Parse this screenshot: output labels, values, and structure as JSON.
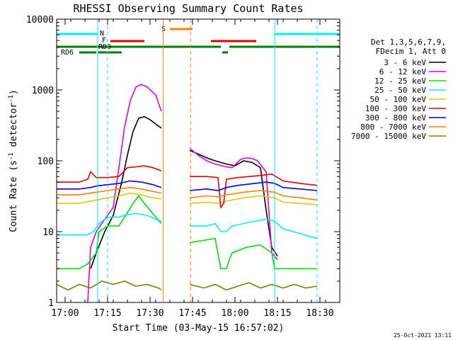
{
  "chart_data": {
    "type": "line",
    "title": "RHESSI Observing Summary Count Rates",
    "xlabel": "Start Time (03-May-15 16:57:02)",
    "ylabel": "Count Rate (s⁻¹ detector⁻¹)",
    "ylabel_main": "Count Rate (s",
    "ylabel_sup1": "-1",
    "ylabel_mid": " detector",
    "ylabel_sup2": "-1",
    "ylabel_end": ")",
    "y_scale": "log",
    "ylim": [
      1,
      10000
    ],
    "xlim_minutes_since_1657": [
      0,
      100
    ],
    "x_ticks": [
      {
        "label": "17:00",
        "min": 3
      },
      {
        "label": "17:15",
        "min": 18
      },
      {
        "label": "17:30",
        "min": 33
      },
      {
        "label": "17:45",
        "min": 48
      },
      {
        "label": "18:00",
        "min": 63
      },
      {
        "label": "18:15",
        "min": 78
      },
      {
        "label": "18:30",
        "min": 93
      }
    ],
    "y_ticks": [
      {
        "label": "1",
        "v": 1
      },
      {
        "label": "10",
        "v": 10
      },
      {
        "label": "100",
        "v": 100
      },
      {
        "label": "1000",
        "v": 1000
      },
      {
        "label": "10000",
        "v": 10000
      }
    ],
    "legend": {
      "placement": "right",
      "header": [
        "Det 1,3,5,6,7,9,",
        "FDecim 1, Att 0"
      ],
      "entries": [
        {
          "label": "3 - 6 keV",
          "color": "#000000"
        },
        {
          "label": "6 - 12 keV",
          "color": "#e000e0"
        },
        {
          "label": "12 - 25 keV",
          "color": "#00e000"
        },
        {
          "label": "25 - 50 keV",
          "color": "#00f0f0"
        },
        {
          "label": "50 - 100 keV",
          "color": "#e0c800"
        },
        {
          "label": "100 - 300 keV",
          "color": "#e00000"
        },
        {
          "label": "300 - 800 keV",
          "color": "#0000e0"
        },
        {
          "label": "800 - 7000 keV",
          "color": "#ff8000"
        },
        {
          "label": "7000 - 15000 keV",
          "color": "#808000"
        }
      ]
    },
    "flags": {
      "N_label": "N",
      "S_label": "S",
      "F_label": "F",
      "RD0_label": "RD0",
      "RD6_label": "RD6",
      "N_segments": [
        [
          0,
          14.5
        ],
        [
          77,
          100
        ]
      ],
      "S_segments": [
        [
          40,
          48
        ]
      ],
      "F_segments": [
        [
          19,
          31
        ],
        [
          54.5,
          70.5
        ]
      ],
      "RD0_segments": [
        [
          0,
          58
        ],
        [
          61,
          100
        ]
      ],
      "RD6_segments": [
        [
          8,
          14
        ],
        [
          14.5,
          23
        ],
        [
          58.5,
          60.5
        ]
      ]
    },
    "eclipse_lines_orange": [
      37.6,
      47.3
    ],
    "cyan_lines": [
      14.5,
      77
    ],
    "cyan_dashed": [
      18,
      92
    ],
    "gap": [
      37.6,
      46.8
    ],
    "series": [
      {
        "name": "3 - 6 keV",
        "color": "#000000",
        "segments": [
          [
            [
              12,
              3
            ],
            [
              14,
              5
            ],
            [
              17,
              10
            ],
            [
              20,
              17
            ],
            [
              23,
              50
            ],
            [
              25,
              120
            ],
            [
              27,
              260
            ],
            [
              29,
              400
            ],
            [
              31,
              420
            ],
            [
              33,
              380
            ],
            [
              35,
              330
            ],
            [
              37,
              290
            ]
          ],
          [
            [
              47,
              140
            ],
            [
              50,
              125
            ],
            [
              53,
              110
            ],
            [
              56,
              100
            ],
            [
              60,
              90
            ],
            [
              63,
              85
            ],
            [
              66,
              100
            ],
            [
              69,
              95
            ],
            [
              72,
              80
            ],
            [
              74,
              20
            ],
            [
              76,
              6
            ],
            [
              78,
              4.5
            ]
          ]
        ]
      },
      {
        "name": "6 - 12 keV",
        "color": "#e000e0",
        "segments": [
          [
            [
              11,
              1
            ],
            [
              12,
              6
            ],
            [
              14,
              10
            ],
            [
              17,
              15
            ],
            [
              20,
              22
            ],
            [
              22,
              80
            ],
            [
              24,
              300
            ],
            [
              26,
              700
            ],
            [
              28,
              1100
            ],
            [
              30,
              1200
            ],
            [
              32,
              1100
            ],
            [
              35,
              850
            ],
            [
              37,
              500
            ]
          ],
          [
            [
              47,
              150
            ],
            [
              50,
              120
            ],
            [
              53,
              100
            ],
            [
              56,
              90
            ],
            [
              60,
              82
            ],
            [
              62,
              80
            ],
            [
              65,
              105
            ],
            [
              67,
              110
            ],
            [
              69,
              108
            ],
            [
              71,
              100
            ],
            [
              74,
              70
            ],
            [
              76,
              5
            ],
            [
              78,
              4
            ]
          ]
        ]
      },
      {
        "name": "12 - 25 keV",
        "color": "#00e000",
        "segments": [
          [
            [
              0,
              3
            ],
            [
              8,
              3
            ],
            [
              11,
              3.5
            ],
            [
              14,
              5
            ],
            [
              15,
              10
            ],
            [
              18,
              12
            ],
            [
              22,
              12
            ],
            [
              24,
              16
            ],
            [
              27,
              25
            ],
            [
              29,
              32
            ],
            [
              31,
              25
            ],
            [
              34,
              18
            ],
            [
              37,
              13
            ]
          ],
          [
            [
              47,
              7
            ],
            [
              56,
              8
            ],
            [
              58,
              3
            ],
            [
              60,
              3
            ],
            [
              61,
              4
            ],
            [
              62,
              5
            ],
            [
              67,
              6
            ],
            [
              72,
              6.5
            ],
            [
              76,
              5
            ],
            [
              77,
              3
            ],
            [
              92,
              3
            ]
          ]
        ]
      },
      {
        "name": "25 - 50 keV",
        "color": "#00f0f0",
        "segments": [
          [
            [
              0,
              9
            ],
            [
              8,
              9
            ],
            [
              11,
              9
            ],
            [
              13,
              10
            ],
            [
              15,
              13
            ],
            [
              18,
              16
            ],
            [
              22,
              16
            ],
            [
              24,
              17
            ],
            [
              28,
              18
            ],
            [
              32,
              17
            ],
            [
              35,
              15
            ],
            [
              37,
              14
            ]
          ],
          [
            [
              47,
              12
            ],
            [
              53,
              12
            ],
            [
              56,
              13
            ],
            [
              58,
              10
            ],
            [
              60,
              10
            ],
            [
              62,
              12
            ],
            [
              66,
              13
            ],
            [
              70,
              14
            ],
            [
              74,
              15
            ],
            [
              77,
              14
            ],
            [
              80,
              11
            ],
            [
              92,
              8
            ]
          ]
        ]
      },
      {
        "name": "50 - 100 keV",
        "color": "#e0c800",
        "segments": [
          [
            [
              0,
              25
            ],
            [
              8,
              25
            ],
            [
              12,
              27
            ],
            [
              14,
              28
            ],
            [
              18,
              30
            ],
            [
              22,
              32
            ],
            [
              26,
              35
            ],
            [
              30,
              33
            ],
            [
              34,
              30
            ],
            [
              37,
              29
            ]
          ],
          [
            [
              47,
              25
            ],
            [
              53,
              26
            ],
            [
              57,
              25
            ],
            [
              60,
              27
            ],
            [
              66,
              30
            ],
            [
              72,
              32
            ],
            [
              77,
              30
            ],
            [
              80,
              26
            ],
            [
              92,
              24
            ]
          ]
        ]
      },
      {
        "name": "100 - 300 keV",
        "color": "#e00000",
        "segments": [
          [
            [
              0,
              50
            ],
            [
              8,
              50
            ],
            [
              11,
              55
            ],
            [
              12,
              70
            ],
            [
              14,
              58
            ],
            [
              18,
              58
            ],
            [
              22,
              60
            ],
            [
              25,
              80
            ],
            [
              28,
              82
            ],
            [
              31,
              85
            ],
            [
              34,
              80
            ],
            [
              37,
              72
            ]
          ],
          [
            [
              47,
              60
            ],
            [
              53,
              60
            ],
            [
              57,
              58
            ],
            [
              58,
              22
            ],
            [
              59,
              25
            ],
            [
              60,
              55
            ],
            [
              64,
              58
            ],
            [
              68,
              60
            ],
            [
              72,
              62
            ],
            [
              76,
              65
            ],
            [
              80,
              52
            ],
            [
              86,
              48
            ],
            [
              92,
              45
            ]
          ]
        ]
      },
      {
        "name": "300 - 800 keV",
        "color": "#0000e0",
        "segments": [
          [
            [
              0,
              40
            ],
            [
              8,
              40
            ],
            [
              12,
              42
            ],
            [
              14,
              44
            ],
            [
              18,
              46
            ],
            [
              22,
              48
            ],
            [
              26,
              52
            ],
            [
              30,
              50
            ],
            [
              34,
              46
            ],
            [
              37,
              42
            ]
          ],
          [
            [
              47,
              38
            ],
            [
              53,
              40
            ],
            [
              57,
              38
            ],
            [
              60,
              42
            ],
            [
              64,
              45
            ],
            [
              70,
              48
            ],
            [
              74,
              50
            ],
            [
              77,
              48
            ],
            [
              80,
              42
            ],
            [
              86,
              40
            ],
            [
              92,
              38
            ]
          ]
        ]
      },
      {
        "name": "800 - 7000 keV",
        "color": "#ff8000",
        "segments": [
          [
            [
              0,
              33
            ],
            [
              8,
              33
            ],
            [
              12,
              35
            ],
            [
              14,
              36
            ],
            [
              18,
              38
            ],
            [
              22,
              40
            ],
            [
              26,
              42
            ],
            [
              30,
              40
            ],
            [
              34,
              37
            ],
            [
              37,
              35
            ]
          ],
          [
            [
              47,
              30
            ],
            [
              53,
              32
            ],
            [
              57,
              31
            ],
            [
              60,
              33
            ],
            [
              66,
              36
            ],
            [
              72,
              38
            ],
            [
              77,
              36
            ],
            [
              80,
              32
            ],
            [
              86,
              30
            ],
            [
              92,
              28
            ]
          ]
        ]
      },
      {
        "name": "7000 - 15000 keV",
        "color": "#808000",
        "segments": [
          [
            [
              0,
              1.8
            ],
            [
              4,
              1.5
            ],
            [
              8,
              1.8
            ],
            [
              12,
              1.6
            ],
            [
              16,
              2
            ],
            [
              20,
              1.8
            ],
            [
              24,
              2
            ],
            [
              28,
              1.7
            ],
            [
              32,
              1.8
            ],
            [
              36,
              1.6
            ],
            [
              37,
              1.5
            ]
          ],
          [
            [
              47,
              1.8
            ],
            [
              52,
              1.6
            ],
            [
              56,
              1.8
            ],
            [
              60,
              1.5
            ],
            [
              64,
              1.7
            ],
            [
              68,
              1.9
            ],
            [
              72,
              1.6
            ],
            [
              76,
              1.8
            ],
            [
              80,
              1.6
            ],
            [
              84,
              1.8
            ],
            [
              88,
              1.6
            ],
            [
              92,
              1.7
            ]
          ]
        ]
      }
    ]
  },
  "footer_timestamp": "25-Oct-2021 13:11"
}
